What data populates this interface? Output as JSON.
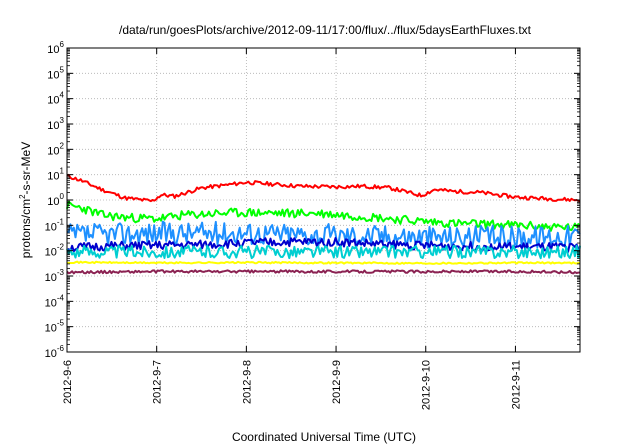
{
  "chart_data": {
    "type": "line",
    "title": "/data/run/goesPlots/archive/2012-09-11/17:00/flux/../flux/5daysEarthFluxes.txt",
    "xlabel": "Coordinated Universal Time (UTC)",
    "ylabel": {
      "pre": "protons/cm",
      "sup": "2",
      "post": "-s-sr-MeV"
    },
    "yscale": "log",
    "ylim": [
      1e-06,
      1000000.0
    ],
    "yticks": [
      {
        "exp": -6,
        "base": "10",
        "sup": "-6"
      },
      {
        "exp": -5,
        "base": "10",
        "sup": "-5"
      },
      {
        "exp": -4,
        "base": "10",
        "sup": "-4"
      },
      {
        "exp": -3,
        "base": "10",
        "sup": "-3"
      },
      {
        "exp": -2,
        "base": "10",
        "sup": "-2"
      },
      {
        "exp": -1,
        "base": "10",
        "sup": "-1"
      },
      {
        "exp": 0,
        "base": "10",
        "sup": "0"
      },
      {
        "exp": 1,
        "base": "10",
        "sup": "1"
      },
      {
        "exp": 2,
        "base": "10",
        "sup": "2"
      },
      {
        "exp": 3,
        "base": "10",
        "sup": "3"
      },
      {
        "exp": 4,
        "base": "10",
        "sup": "4"
      },
      {
        "exp": 5,
        "base": "10",
        "sup": "5"
      },
      {
        "exp": 6,
        "base": "10",
        "sup": "6"
      }
    ],
    "xlim": [
      "2012-09-06",
      "2012-09-11 17:00"
    ],
    "xlim_days": [
      0,
      5.72
    ],
    "xticks": [
      {
        "day": 0,
        "label": "2012-9-6"
      },
      {
        "day": 1,
        "label": "2012-9-7"
      },
      {
        "day": 2,
        "label": "2012-9-8"
      },
      {
        "day": 3,
        "label": "2012-9-9"
      },
      {
        "day": 4,
        "label": "2012-9-10"
      },
      {
        "day": 5,
        "label": "2012-9-11"
      }
    ],
    "grid": true,
    "legend": "none",
    "series": [
      {
        "color": "#ff0000",
        "days": [
          0,
          0.15,
          0.4,
          0.65,
          0.95,
          1.05,
          1.2,
          1.5,
          1.8,
          2.0,
          2.3,
          2.6,
          3.0,
          3.3,
          3.6,
          3.95,
          4.1,
          4.3,
          4.6,
          4.8,
          5.0,
          5.2,
          5.4,
          5.72
        ],
        "values": [
          9,
          6,
          2.5,
          1.2,
          0.9,
          1.6,
          1.4,
          3.0,
          4.0,
          5.0,
          4.2,
          3.5,
          3.3,
          3.5,
          3.0,
          1.5,
          2.6,
          2.2,
          2.0,
          1.6,
          1.3,
          1.2,
          1.1,
          1.0
        ],
        "noise": 0.15,
        "seed": 11
      },
      {
        "color": "#00ff00",
        "days": [
          0,
          0.15,
          0.4,
          0.7,
          1.0,
          1.3,
          1.7,
          2.0,
          2.4,
          2.8,
          3.1,
          3.5,
          3.9,
          4.3,
          4.7,
          5.0,
          5.3,
          5.72
        ],
        "values": [
          0.6,
          0.5,
          0.25,
          0.2,
          0.18,
          0.25,
          0.3,
          0.32,
          0.3,
          0.3,
          0.25,
          0.2,
          0.15,
          0.12,
          0.11,
          0.1,
          0.09,
          0.08
        ],
        "noise": 0.35,
        "seed": 23
      },
      {
        "color": "#1e90ff",
        "days": [
          0,
          0.5,
          1.0,
          1.5,
          2.0,
          2.5,
          3.0,
          3.5,
          4.0,
          4.5,
          5.0,
          5.72
        ],
        "values": [
          0.04,
          0.045,
          0.05,
          0.05,
          0.05,
          0.045,
          0.04,
          0.04,
          0.035,
          0.035,
          0.035,
          0.04
        ],
        "noise": 0.9,
        "seed": 37
      },
      {
        "color": "#0000cd",
        "days": [
          0,
          0.5,
          1.0,
          1.5,
          2.0,
          2.5,
          3.0,
          3.5,
          4.0,
          4.5,
          5.0,
          5.72
        ],
        "values": [
          0.013,
          0.015,
          0.016,
          0.017,
          0.02,
          0.022,
          0.022,
          0.018,
          0.016,
          0.015,
          0.014,
          0.013
        ],
        "noise": 0.35,
        "seed": 51
      },
      {
        "color": "#00ced1",
        "days": [
          0,
          0.5,
          1.0,
          1.5,
          2.0,
          2.5,
          3.0,
          3.5,
          4.0,
          4.5,
          5.0,
          5.72
        ],
        "values": [
          0.009,
          0.009,
          0.009,
          0.009,
          0.009,
          0.009,
          0.009,
          0.009,
          0.009,
          0.009,
          0.009,
          0.009
        ],
        "noise": 0.5,
        "seed": 63
      },
      {
        "color": "#ffff00",
        "days": [
          0,
          1.0,
          2.0,
          3.0,
          4.0,
          5.0,
          5.72
        ],
        "values": [
          0.0035,
          0.0033,
          0.0034,
          0.0033,
          0.0032,
          0.0033,
          0.0033
        ],
        "noise": 0.06,
        "seed": 71
      },
      {
        "color": "#8b2252",
        "days": [
          0,
          1.0,
          2.0,
          3.0,
          4.0,
          5.0,
          5.72
        ],
        "values": [
          0.0014,
          0.0015,
          0.0015,
          0.0015,
          0.0015,
          0.0015,
          0.0014
        ],
        "noise": 0.1,
        "seed": 89
      }
    ]
  }
}
